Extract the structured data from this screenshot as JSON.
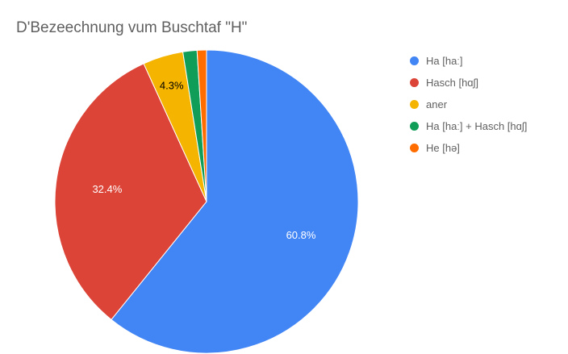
{
  "title": "D'Bezeechnung vum Buschtaf \"H\"",
  "chart_data": {
    "type": "pie",
    "title": "D'Bezeechnung vum Buschtaf \"H\"",
    "categories": [
      "Ha [haː]",
      "Hasch [hɑʃ]",
      "aner",
      "Ha [haː] + Hasch [hɑʃ]",
      "He [hə]"
    ],
    "values": [
      60.8,
      32.4,
      4.3,
      1.5,
      1.0
    ],
    "slice_labels": [
      "60.8%",
      "32.4%",
      "4.3%",
      "",
      ""
    ],
    "colors": [
      "#4285F4",
      "#DB4437",
      "#F4B400",
      "#0F9D58",
      "#FF6D01"
    ],
    "slice_label_colors": [
      "#ffffff",
      "#ffffff",
      "#000000",
      "#ffffff",
      "#ffffff"
    ],
    "legend_position": "right",
    "start_angle_deg": 0,
    "direction": "clockwise",
    "legend": [
      "Ha [haː]",
      "Hasch [hɑʃ]",
      "aner",
      "Ha [haː] + Hasch [hɑʃ]",
      "He [hə]"
    ]
  },
  "colors": {
    "background": "#ffffff",
    "title_text": "#5f5f5f",
    "legend_text": "#616161"
  },
  "geometry_note": "pie centered left of area, legend right column"
}
